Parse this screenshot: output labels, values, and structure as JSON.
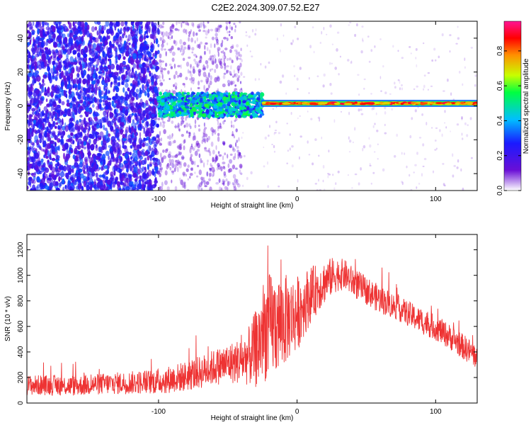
{
  "figure": {
    "title": "C2E2.2024.309.07.52.E27"
  },
  "chart_data": [
    {
      "type": "heatmap",
      "title": "",
      "xlabel": "Height of straight line (km)",
      "ylabel": "Frequency (Hz)",
      "xlim": [
        -195,
        130
      ],
      "ylim": [
        -50,
        50
      ],
      "xticks": [
        -100,
        0,
        100
      ],
      "yticks": [
        -40,
        -20,
        0,
        20,
        40
      ],
      "colorbar": {
        "label": "Normalized spectral amplitude",
        "range": [
          0.0,
          0.97
        ],
        "ticks": [
          0.0,
          0.2,
          0.4,
          0.6,
          0.8
        ],
        "colormap": [
          "#ffffff",
          "#6a0fd6",
          "#1a1aff",
          "#00bfff",
          "#00ff40",
          "#c8ff00",
          "#ff9000",
          "#ff0000",
          "#ff1493"
        ]
      },
      "regions": [
        {
          "x_range": [
            -195,
            -100
          ],
          "frequency_range": [
            -50,
            50
          ],
          "amplitude_level": "low",
          "description": "broadband noise"
        },
        {
          "x_range": [
            -100,
            -25
          ],
          "frequency_center": 0,
          "amplitude_level": "medium"
        },
        {
          "x_range": [
            -25,
            130
          ],
          "frequency_center": 0,
          "amplitude_level": "high"
        }
      ]
    },
    {
      "type": "line",
      "title": "",
      "xlabel": "Height of straight line (km)",
      "ylabel": "SNR (10 * v/v)",
      "xlim": [
        -195,
        130
      ],
      "ylim": [
        0,
        1320
      ],
      "xticks": [
        -100,
        0,
        100
      ],
      "yticks": [
        0,
        200,
        400,
        600,
        800,
        1000,
        1200
      ],
      "series": [
        {
          "color": "#ee3333",
          "x": [
            -195,
            -180,
            -160,
            -140,
            -120,
            -100,
            -90,
            -80,
            -70,
            -60,
            -50,
            -40,
            -33,
            -28,
            -25,
            -20,
            -15,
            -10,
            -5,
            0,
            5,
            10,
            15,
            20,
            25,
            30,
            35,
            40,
            50,
            60,
            70,
            80,
            90,
            100,
            110,
            120,
            130
          ],
          "y": [
            140,
            140,
            135,
            150,
            160,
            170,
            190,
            210,
            240,
            280,
            310,
            330,
            380,
            450,
            560,
            600,
            620,
            640,
            670,
            700,
            780,
            850,
            900,
            950,
            990,
            1010,
            1000,
            950,
            880,
            810,
            760,
            700,
            640,
            590,
            520,
            440,
            360
          ],
          "spread": [
            80,
            80,
            80,
            85,
            90,
            100,
            110,
            120,
            130,
            140,
            160,
            180,
            250,
            350,
            400,
            420,
            400,
            380,
            320,
            300,
            260,
            220,
            190,
            170,
            150,
            130,
            120,
            120,
            110,
            110,
            100,
            100,
            100,
            100,
            100,
            100,
            100
          ]
        }
      ]
    }
  ]
}
